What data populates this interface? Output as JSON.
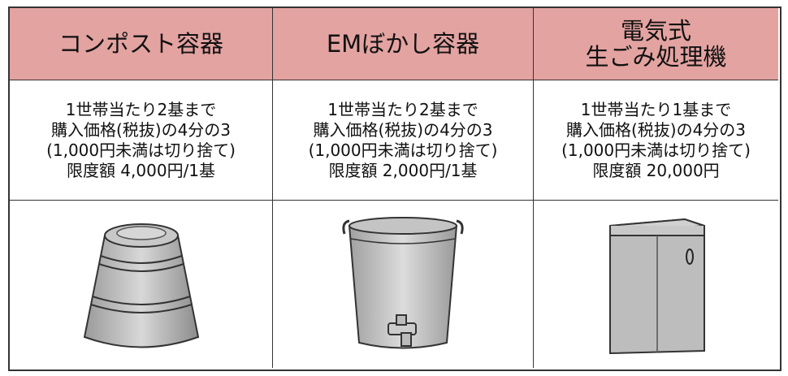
{
  "table": {
    "headers": [
      [
        "コンポスト容器"
      ],
      [
        "EMぼかし容器"
      ],
      [
        "電気式",
        "生ごみ処理機"
      ]
    ],
    "rows": [
      [
        [
          "1世帯当たり2基まで",
          "購入価格(税抜)の4分の3",
          "(1,000円未満は切り捨て)",
          "限度額 4,000円/1基"
        ],
        [
          "1世帯当たり2基まで",
          "購入価格(税抜)の4分の3",
          "(1,000円未満は切り捨て)",
          "限度額 2,000円/1基"
        ],
        [
          "1世帯当たり1基まで",
          "購入価格(税抜)の4分の3",
          "(1,000円未満は切り捨て)",
          "限度額 20,000円"
        ]
      ]
    ]
  }
}
